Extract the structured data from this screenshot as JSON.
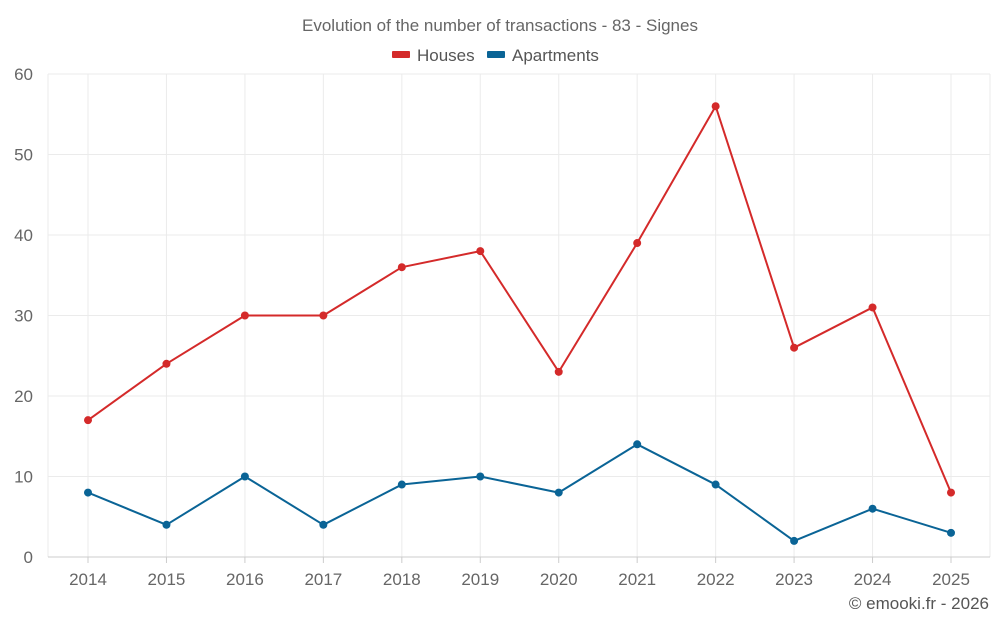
{
  "chart_data": {
    "type": "line",
    "title": "Evolution of the number of transactions - 83 - Signes",
    "xlabel": "",
    "ylabel": "",
    "categories": [
      "2014",
      "2015",
      "2016",
      "2017",
      "2018",
      "2019",
      "2020",
      "2021",
      "2022",
      "2023",
      "2024",
      "2025"
    ],
    "ylim": [
      0,
      60
    ],
    "yticks": [
      0,
      10,
      20,
      30,
      40,
      50,
      60
    ],
    "grid": true,
    "legend_position": "top-center",
    "series": [
      {
        "name": "Houses",
        "color": "#d42a2a",
        "values": [
          17,
          24,
          30,
          30,
          36,
          38,
          23,
          39,
          56,
          26,
          31,
          8
        ]
      },
      {
        "name": "Apartments",
        "color": "#0a6496",
        "values": [
          8,
          4,
          10,
          4,
          9,
          10,
          8,
          14,
          9,
          2,
          6,
          3
        ]
      }
    ]
  },
  "credit": "© emooki.fr - 2026"
}
